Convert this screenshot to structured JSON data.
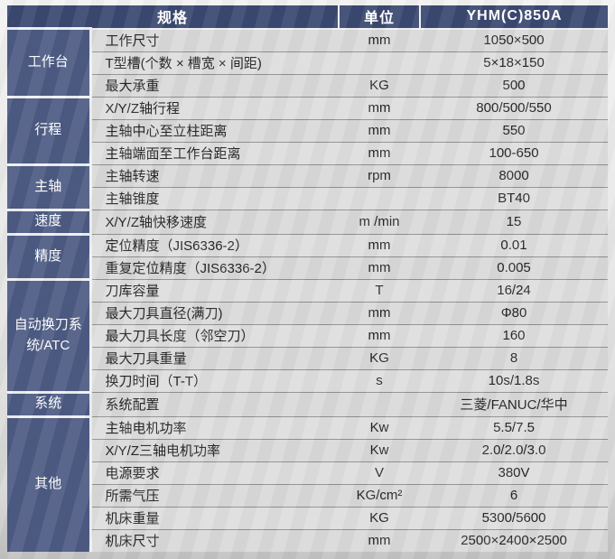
{
  "header": {
    "spec_label": "规格",
    "unit_label": "单位",
    "model_label": "YHM(C)850A"
  },
  "sections": [
    {
      "category": "工作台",
      "rows": [
        {
          "name": "工作尺寸",
          "unit": "mm",
          "value": "1050×500"
        },
        {
          "name": "T型槽(个数 × 槽宽 × 间距)",
          "unit": "",
          "value": "5×18×150"
        },
        {
          "name": "最大承重",
          "unit": "KG",
          "value": "500"
        }
      ]
    },
    {
      "category": "行程",
      "rows": [
        {
          "name": "X/Y/Z轴行程",
          "unit": "mm",
          "value": "800/500/550"
        },
        {
          "name": "主轴中心至立柱距离",
          "unit": "mm",
          "value": "550"
        },
        {
          "name": "主轴端面至工作台距离",
          "unit": "mm",
          "value": "100-650"
        }
      ]
    },
    {
      "category": "主轴",
      "rows": [
        {
          "name": "主轴转速",
          "unit": "rpm",
          "value": "8000"
        },
        {
          "name": "主轴锥度",
          "unit": "",
          "value": "BT40"
        }
      ]
    },
    {
      "category": "速度",
      "rows": [
        {
          "name": "X/Y/Z轴快移速度",
          "unit": "m /min",
          "value": "15"
        }
      ]
    },
    {
      "category": "精度",
      "rows": [
        {
          "name": "定位精度（JIS6336-2）",
          "unit": "mm",
          "value": "0.01"
        },
        {
          "name": "重复定位精度（JIS6336-2）",
          "unit": "mm",
          "value": "0.005"
        }
      ]
    },
    {
      "category": "自动换刀系统/ATC",
      "rows": [
        {
          "name": "刀库容量",
          "unit": "T",
          "value": "16/24"
        },
        {
          "name": "最大刀具直径(满刀)",
          "unit": "mm",
          "value": "Φ80"
        },
        {
          "name": "最大刀具长度（邻空刀）",
          "unit": "mm",
          "value": "160"
        },
        {
          "name": "最大刀具重量",
          "unit": "KG",
          "value": "8"
        },
        {
          "name": "换刀时间（T-T）",
          "unit": "s",
          "value": "10s/1.8s"
        }
      ]
    },
    {
      "category": "系统",
      "rows": [
        {
          "name": "系统配置",
          "unit": "",
          "value": "三菱/FANUC/华中"
        }
      ]
    },
    {
      "category": "其他",
      "rows": [
        {
          "name": "主轴电机功率",
          "unit": "Kw",
          "value": "5.5/7.5"
        },
        {
          "name": "X/Y/Z三轴电机功率",
          "unit": "Kw",
          "value": "2.0/2.0/3.0"
        },
        {
          "name": "电源要求",
          "unit": "V",
          "value": "380V"
        },
        {
          "name": "所需气压",
          "unit": "KG/cm²",
          "value": "6"
        },
        {
          "name": "机床重量",
          "unit": "KG",
          "value": "5300/5600"
        },
        {
          "name": "机床尺寸",
          "unit": "mm",
          "value": "2500×2400×2500"
        }
      ]
    }
  ],
  "colors": {
    "header_bg": "#3a4870",
    "category_bg": "#4d5b83",
    "row_bg": "#d9d9d9",
    "separator_light": "#eef0f2",
    "row_line": "#8f8f8f",
    "header_text": "#ffffff",
    "body_text": "#262626"
  }
}
